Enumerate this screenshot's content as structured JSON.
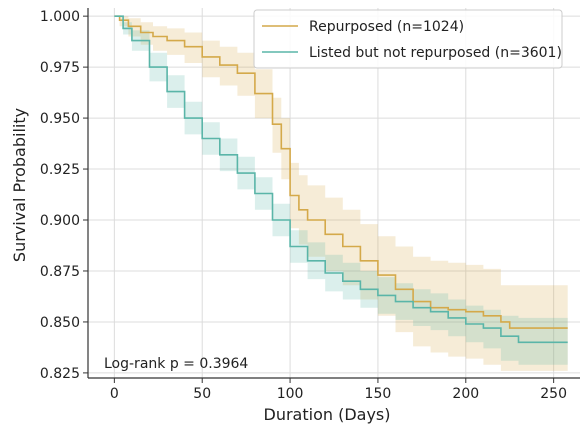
{
  "chart_data": {
    "type": "line",
    "xlabel": "Duration (Days)",
    "ylabel": "Survival Probability",
    "xlim": [
      -15,
      265
    ],
    "ylim": [
      0.8225,
      1.004
    ],
    "xticks": [
      0,
      50,
      100,
      150,
      200,
      250
    ],
    "yticks": [
      0.825,
      0.85,
      0.875,
      0.9,
      0.925,
      0.95,
      0.975,
      1.0
    ],
    "xtick_labels": [
      "0",
      "50",
      "100",
      "150",
      "200",
      "250"
    ],
    "ytick_labels": [
      "0.825",
      "0.850",
      "0.875",
      "0.900",
      "0.925",
      "0.950",
      "0.975",
      "1.000"
    ],
    "grid": true,
    "legend_position": "top-right",
    "annotation": "Log-rank p = 0.3964",
    "series": [
      {
        "name": "Repurposed (n=1024)",
        "color": "#d4a94a",
        "step": true,
        "x": [
          0,
          3,
          8,
          15,
          22,
          30,
          40,
          50,
          60,
          70,
          80,
          90,
          95,
          100,
          105,
          110,
          120,
          130,
          140,
          150,
          160,
          170,
          180,
          190,
          200,
          210,
          220,
          225,
          258
        ],
        "y": [
          1.0,
          0.998,
          0.995,
          0.992,
          0.99,
          0.988,
          0.985,
          0.98,
          0.976,
          0.972,
          0.962,
          0.947,
          0.935,
          0.912,
          0.905,
          0.9,
          0.893,
          0.887,
          0.88,
          0.873,
          0.866,
          0.86,
          0.857,
          0.856,
          0.855,
          0.853,
          0.85,
          0.847,
          0.847
        ],
        "ci_upper": [
          1.0,
          1.0,
          0.999,
          0.997,
          0.995,
          0.994,
          0.992,
          0.988,
          0.985,
          0.982,
          0.974,
          0.96,
          0.95,
          0.928,
          0.922,
          0.917,
          0.911,
          0.905,
          0.898,
          0.892,
          0.887,
          0.882,
          0.88,
          0.879,
          0.878,
          0.876,
          0.868,
          0.868,
          0.868
        ],
        "ci_lower": [
          1.0,
          0.995,
          0.99,
          0.986,
          0.983,
          0.981,
          0.977,
          0.97,
          0.966,
          0.961,
          0.95,
          0.933,
          0.92,
          0.896,
          0.888,
          0.882,
          0.875,
          0.868,
          0.861,
          0.853,
          0.845,
          0.838,
          0.835,
          0.833,
          0.832,
          0.829,
          0.826,
          0.826,
          0.826
        ]
      },
      {
        "name": "Listed but not repurposed (n=3601)",
        "color": "#5ab5a8",
        "step": true,
        "x": [
          0,
          5,
          10,
          20,
          30,
          40,
          50,
          60,
          70,
          80,
          90,
          100,
          110,
          120,
          130,
          140,
          150,
          160,
          170,
          180,
          190,
          200,
          210,
          220,
          230,
          258
        ],
        "y": [
          1.0,
          0.994,
          0.988,
          0.975,
          0.963,
          0.95,
          0.94,
          0.932,
          0.923,
          0.913,
          0.9,
          0.887,
          0.88,
          0.874,
          0.87,
          0.866,
          0.863,
          0.86,
          0.857,
          0.855,
          0.852,
          0.849,
          0.847,
          0.843,
          0.84,
          0.84
        ],
        "ci_upper": [
          1.0,
          0.997,
          0.993,
          0.982,
          0.971,
          0.958,
          0.948,
          0.94,
          0.931,
          0.921,
          0.908,
          0.895,
          0.889,
          0.883,
          0.879,
          0.875,
          0.872,
          0.869,
          0.866,
          0.864,
          0.861,
          0.858,
          0.856,
          0.853,
          0.852,
          0.852
        ],
        "ci_lower": [
          1.0,
          0.991,
          0.983,
          0.968,
          0.955,
          0.942,
          0.932,
          0.924,
          0.915,
          0.905,
          0.892,
          0.879,
          0.871,
          0.865,
          0.861,
          0.857,
          0.854,
          0.851,
          0.848,
          0.846,
          0.843,
          0.84,
          0.837,
          0.831,
          0.829,
          0.829
        ]
      }
    ]
  }
}
